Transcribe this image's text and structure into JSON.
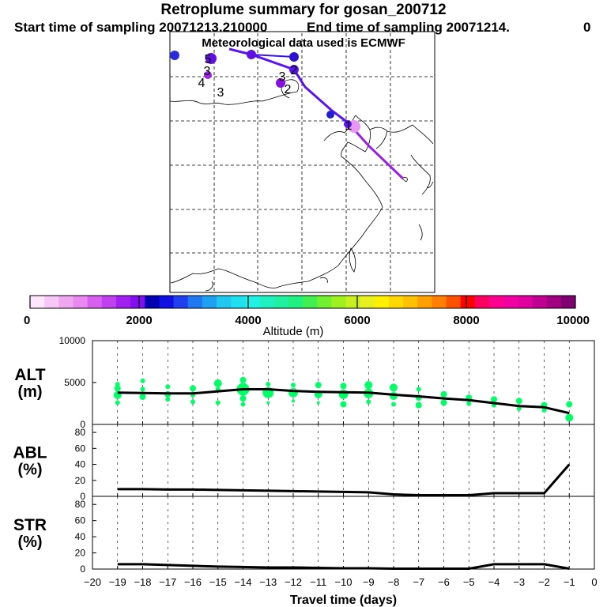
{
  "header": {
    "title": "Retroplume summary for gosan_200712",
    "start_sampling": "Start time of sampling 20071213.210000",
    "end_sampling": "End time of sampling 20071214.",
    "end_suffix": "0",
    "met_data": "Meteorological data used is ECMWF"
  },
  "map": {
    "track_colors": [
      "#9a1ee6",
      "#5a14f0",
      "#3a14e6"
    ],
    "day_labels": [
      {
        "text": "4",
        "at": [
          255,
          110
        ]
      },
      {
        "text": "3",
        "at": [
          279,
          122
        ]
      },
      {
        "text": "3",
        "at": [
          262,
          95
        ]
      },
      {
        "text": "2",
        "at": [
          364,
          118
        ]
      },
      {
        "text": "3",
        "at": [
          357,
          102
        ]
      },
      {
        "text": "5",
        "at": [
          263,
          80
        ]
      },
      {
        "text": "2",
        "at": [
          372,
          94
        ]
      },
      {
        "text": "1",
        "at": [
          441,
          164
        ]
      }
    ]
  },
  "colorbar": {
    "tick_labels": [
      "0",
      "2000",
      "4000",
      "6000",
      "8000",
      "10000"
    ],
    "label": "Altitude (m)",
    "min": 0,
    "max": 10000,
    "colors": [
      "#ffe6ff",
      "#f7c8f7",
      "#efa8ef",
      "#e888f0",
      "#d860f0",
      "#c040f0",
      "#a020f0",
      "#8010f0",
      "#0000b0",
      "#1010e0",
      "#2040f0",
      "#2078f0",
      "#20a0f0",
      "#20c8f0",
      "#20e0f0",
      "#20f0e8",
      "#20f0c0",
      "#20f0a0",
      "#20f080",
      "#40f050",
      "#70f030",
      "#a0f020",
      "#c8f020",
      "#e8f020",
      "#fff000",
      "#ffd800",
      "#ffc000",
      "#ffa000",
      "#ff8000",
      "#ff5000",
      "#ff0000",
      "#ff0060",
      "#ff0090",
      "#f000a0",
      "#e000a0",
      "#c00090",
      "#a00080",
      "#800070"
    ]
  },
  "chart_data": [
    {
      "type": "scatter",
      "name": "ALT",
      "ylabel_line1": "ALT",
      "ylabel_line2": "(m)",
      "x_ticks": [
        -20,
        -19,
        -18,
        -17,
        -16,
        -15,
        -14,
        -13,
        -12,
        -11,
        -10,
        -9,
        -8,
        -7,
        -6,
        -5,
        -4,
        -3,
        -2,
        -1,
        0
      ],
      "ylim": [
        0,
        10000
      ],
      "y_ticks": [
        "0",
        "5000",
        "10000"
      ],
      "mean_line": {
        "x": [
          -19,
          -18,
          -17,
          -16,
          -15,
          -14,
          -13,
          -12,
          -11,
          -10,
          -9,
          -8,
          -7,
          -6,
          -5,
          -4,
          -3,
          -2,
          -1
        ],
        "y": [
          3800,
          3750,
          3700,
          3700,
          3950,
          4200,
          4200,
          4000,
          3900,
          3850,
          3800,
          3550,
          3350,
          3100,
          2900,
          2550,
          2200,
          2050,
          1350
        ]
      },
      "points": {
        "color": "#00ff66",
        "x": [
          -19,
          -19,
          -19,
          -19,
          -18,
          -18,
          -18,
          -17,
          -17,
          -17,
          -16,
          -16,
          -16,
          -15,
          -15,
          -15,
          -14,
          -14,
          -14,
          -14,
          -13,
          -13,
          -13,
          -12,
          -12,
          -12,
          -11,
          -11,
          -11,
          -10,
          -10,
          -10,
          -9,
          -9,
          -9,
          -8,
          -8,
          -8,
          -7,
          -7,
          -7,
          -6,
          -6,
          -5,
          -5,
          -4,
          -4,
          -3,
          -3,
          -2,
          -2,
          -1,
          -1
        ],
        "y": [
          4800,
          4300,
          3500,
          2600,
          5200,
          4200,
          3300,
          4500,
          3600,
          3000,
          4300,
          3500,
          2700,
          4900,
          4200,
          2600,
          5300,
          4200,
          3100,
          2400,
          4800,
          3800,
          2600,
          4700,
          3800,
          2800,
          4700,
          3600,
          2600,
          4600,
          3600,
          2400,
          4700,
          3700,
          2700,
          4400,
          3400,
          2400,
          4200,
          3200,
          2300,
          3600,
          2600,
          3200,
          2500,
          3000,
          2300,
          2800,
          1900,
          2300,
          1700,
          2400,
          800
        ],
        "r": [
          3,
          4,
          5,
          3,
          3,
          3,
          4,
          3,
          4,
          3,
          4,
          3,
          3,
          5,
          3,
          3,
          4,
          8,
          4,
          3,
          3,
          7,
          2,
          3,
          6,
          2,
          4,
          5,
          2,
          4,
          6,
          4,
          5,
          6,
          3,
          5,
          5,
          3,
          3,
          4,
          4,
          4,
          4,
          4,
          3,
          4,
          3,
          4,
          3,
          4,
          3,
          4,
          5
        ]
      }
    },
    {
      "type": "line",
      "name": "ABL",
      "ylabel_line1": "ABL",
      "ylabel_line2": "(%)",
      "x_ticks": [
        -20,
        -19,
        -18,
        -17,
        -16,
        -15,
        -14,
        -13,
        -12,
        -11,
        -10,
        -9,
        -8,
        -7,
        -6,
        -5,
        -4,
        -3,
        -2,
        -1,
        0
      ],
      "ylim": [
        0,
        90
      ],
      "y_ticks": [
        "0",
        "20",
        "40",
        "60",
        "80"
      ],
      "x": [
        -19,
        -18,
        -17,
        -16,
        -15,
        -14,
        -13,
        -12,
        -11,
        -10,
        -9,
        -8,
        -7,
        -6,
        -5,
        -4,
        -3,
        -2,
        -1
      ],
      "y": [
        9,
        9,
        8.5,
        8.5,
        8,
        7.5,
        7,
        6.5,
        6,
        5.5,
        5,
        2.5,
        1.5,
        1.5,
        1.5,
        4,
        4,
        4,
        40
      ]
    },
    {
      "type": "line",
      "name": "STR",
      "ylabel_line1": "STR",
      "ylabel_line2": "(%)",
      "xlabel": "Travel time (days)",
      "x_ticks": [
        -20,
        -19,
        -18,
        -17,
        -16,
        -15,
        -14,
        -13,
        -12,
        -11,
        -10,
        -9,
        -8,
        -7,
        -6,
        -5,
        -4,
        -3,
        -2,
        -1,
        0
      ],
      "ylim": [
        0,
        90
      ],
      "y_ticks": [
        "0",
        "20",
        "40",
        "60",
        "80"
      ],
      "x": [
        -19,
        -18,
        -17,
        -16,
        -15,
        -14,
        -13,
        -12,
        -11,
        -10,
        -9,
        -8,
        -7,
        -6,
        -5,
        -4,
        -3,
        -2,
        -1
      ],
      "y": [
        6,
        6,
        5,
        4,
        3,
        2.5,
        2,
        2,
        1.5,
        1,
        1,
        0.5,
        0.5,
        0.5,
        0.5,
        6,
        6,
        6,
        0.5
      ]
    }
  ]
}
